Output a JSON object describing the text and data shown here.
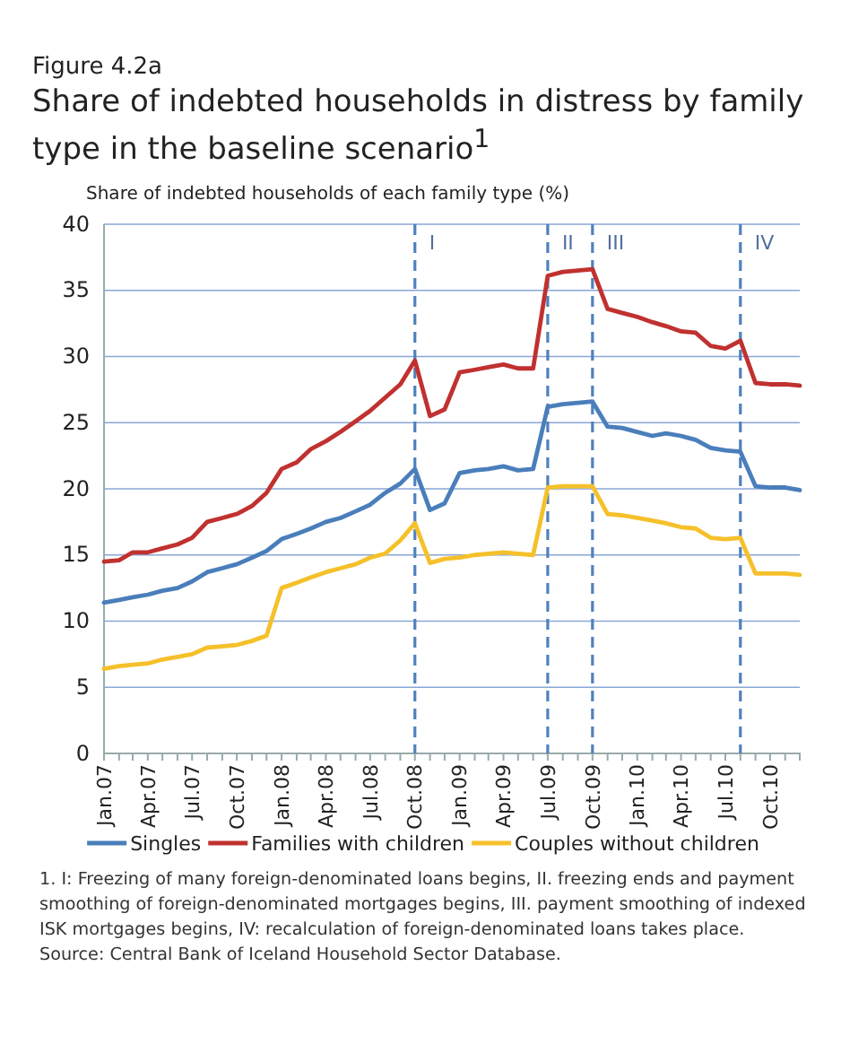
{
  "chart_data": {
    "type": "line",
    "title": "Figure 4.2a",
    "subtitle": "Share of indebted households in distress by family type in the baseline scenario$^{1}$",
    "ylabel": "Share of indebted households of each family type (%)",
    "x": [
      "2007-01",
      "2007-02",
      "2007-03",
      "2007-04",
      "2007-05",
      "2007-06",
      "2007-07",
      "2007-08",
      "2007-09",
      "2007-10",
      "2007-11",
      "2007-12",
      "2008-01",
      "2008-02",
      "2008-03",
      "2008-04",
      "2008-05",
      "2008-06",
      "2008-07",
      "2008-08",
      "2008-09",
      "2008-10",
      "2008-11",
      "2008-12",
      "2009-01",
      "2009-02",
      "2009-03",
      "2009-04",
      "2009-05",
      "2009-06",
      "2009-07",
      "2009-08",
      "2009-09",
      "2009-10",
      "2009-11",
      "2009-12",
      "2010-01",
      "2010-02",
      "2010-03",
      "2010-04",
      "2010-05",
      "2010-06",
      "2010-07",
      "2010-08",
      "2010-09",
      "2010-10",
      "2010-11",
      "2010-12"
    ],
    "series": [
      {
        "name": "Singles",
        "color": "#4a7ebb",
        "values": [
          11.4,
          11.6,
          11.8,
          12.0,
          12.3,
          12.5,
          13.0,
          13.7,
          14.0,
          14.3,
          14.8,
          15.3,
          16.2,
          16.6,
          17.0,
          17.5,
          17.8,
          18.3,
          18.8,
          19.7,
          20.4,
          21.5,
          18.4,
          18.9,
          21.2,
          21.4,
          21.5,
          21.7,
          21.4,
          21.5,
          26.2,
          26.4,
          26.5,
          26.6,
          24.7,
          24.6,
          24.3,
          24.0,
          24.2,
          24.0,
          23.7,
          23.1,
          22.9,
          22.8,
          20.2,
          20.1,
          20.1,
          19.9
        ]
      },
      {
        "name": "Families with children",
        "color": "#c0312f",
        "values": [
          14.5,
          14.6,
          15.2,
          15.2,
          15.5,
          15.8,
          16.3,
          17.5,
          17.8,
          18.1,
          18.7,
          19.7,
          21.5,
          22.0,
          23.0,
          23.6,
          24.3,
          25.1,
          25.9,
          26.9,
          27.9,
          29.7,
          25.5,
          26.0,
          28.8,
          29.0,
          29.2,
          29.4,
          29.1,
          29.1,
          36.1,
          36.4,
          36.5,
          36.6,
          33.6,
          33.3,
          33.0,
          32.6,
          32.3,
          31.9,
          31.8,
          30.8,
          30.6,
          31.2,
          28.0,
          27.9,
          27.9,
          27.8
        ]
      },
      {
        "name": "Couples without children",
        "color": "#f5c02a",
        "values": [
          6.4,
          6.6,
          6.7,
          6.8,
          7.1,
          7.3,
          7.5,
          8.0,
          8.1,
          8.2,
          8.5,
          8.9,
          12.5,
          12.9,
          13.3,
          13.7,
          14.0,
          14.3,
          14.8,
          15.1,
          16.1,
          17.4,
          14.4,
          14.7,
          14.8,
          15.0,
          15.1,
          15.2,
          15.1,
          15.0,
          20.1,
          20.2,
          20.2,
          20.2,
          18.1,
          18.0,
          17.8,
          17.6,
          17.4,
          17.1,
          17.0,
          16.3,
          16.2,
          16.3,
          13.6,
          13.6,
          13.6,
          13.5
        ]
      }
    ],
    "xlim": [
      "2007-01",
      "2010-12"
    ],
    "xticks": [
      {
        "value": "2007-01",
        "label": "Jan.07"
      },
      {
        "value": "2007-02",
        "label": null
      },
      {
        "value": "2007-03",
        "label": null
      },
      {
        "value": "2007-04",
        "label": "Apr.07"
      },
      {
        "value": "2007-05",
        "label": null
      },
      {
        "value": "2007-06",
        "label": null
      },
      {
        "value": "2007-07",
        "label": "Jul.07"
      },
      {
        "value": "2007-08",
        "label": null
      },
      {
        "value": "2007-09",
        "label": null
      },
      {
        "value": "2007-10",
        "label": "Oct.07"
      },
      {
        "value": "2007-11",
        "label": null
      },
      {
        "value": "2007-12",
        "label": null
      },
      {
        "value": "2008-01",
        "label": "Jan.08"
      },
      {
        "value": "2008-02",
        "label": null
      },
      {
        "value": "2008-03",
        "label": null
      },
      {
        "value": "2008-04",
        "label": "Apr.08"
      },
      {
        "value": "2008-05",
        "label": null
      },
      {
        "value": "2008-06",
        "label": null
      },
      {
        "value": "2008-07",
        "label": "Jul.08"
      },
      {
        "value": "2008-08",
        "label": null
      },
      {
        "value": "2008-09",
        "label": null
      },
      {
        "value": "2008-10",
        "label": "Oct.08"
      },
      {
        "value": "2008-11",
        "label": null
      },
      {
        "value": "2008-12",
        "label": null
      },
      {
        "value": "2009-01",
        "label": "Jan.09"
      },
      {
        "value": "2009-02",
        "label": null
      },
      {
        "value": "2009-03",
        "label": null
      },
      {
        "value": "2009-04",
        "label": "Apr.09"
      },
      {
        "value": "2009-05",
        "label": null
      },
      {
        "value": "2009-06",
        "label": null
      },
      {
        "value": "2009-07",
        "label": "Jul.09"
      },
      {
        "value": "2009-08",
        "label": null
      },
      {
        "value": "2009-09",
        "label": null
      },
      {
        "value": "2009-10",
        "label": "Oct.09"
      },
      {
        "value": "2009-11",
        "label": null
      },
      {
        "value": "2009-12",
        "label": null
      },
      {
        "value": "2010-01",
        "label": "Jan.10"
      },
      {
        "value": "2010-02",
        "label": null
      },
      {
        "value": "2010-03",
        "label": null
      },
      {
        "value": "2010-04",
        "label": "Apr.10"
      },
      {
        "value": "2010-05",
        "label": null
      },
      {
        "value": "2010-06",
        "label": null
      },
      {
        "value": "2010-07",
        "label": "Jul.10"
      },
      {
        "value": "2010-08",
        "label": null
      },
      {
        "value": "2010-09",
        "label": null
      },
      {
        "value": "2010-10",
        "label": "Oct.10"
      },
      {
        "value": "2010-11",
        "label": null
      },
      {
        "value": "2010-12",
        "label": null
      }
    ],
    "ylim": [
      0,
      40
    ],
    "yticks": [
      0,
      5,
      10,
      15,
      20,
      25,
      30,
      35,
      40
    ],
    "grid": "y",
    "legend": "bottom",
    "marker": "none",
    "line_style": "solid",
    "ref_lines": [
      {
        "axis": "x",
        "value": "2008-10",
        "label": "I",
        "color": "#4f81bd",
        "line_style": "dashed"
      },
      {
        "axis": "x",
        "value": "2009-07",
        "label": "II",
        "color": "#4f81bd",
        "line_style": "dashed"
      },
      {
        "axis": "x",
        "value": "2009-10",
        "label": "III",
        "color": "#4f81bd",
        "line_style": "dashed"
      },
      {
        "axis": "x",
        "value": "2010-08",
        "label": "IV",
        "color": "#4f81bd",
        "line_style": "dashed"
      }
    ],
    "annotations": [
      "1. I: Freezing of many foreign-denominated loans begins, II. freezing ends and payment smoothing of foreign-denominated mortgages begins, III. payment smoothing of indexed ISK mortgages begins, IV: recalculation of foreign-denominated loans takes place.",
      "Source: Central Bank of Iceland Household Sector Database."
    ]
  }
}
